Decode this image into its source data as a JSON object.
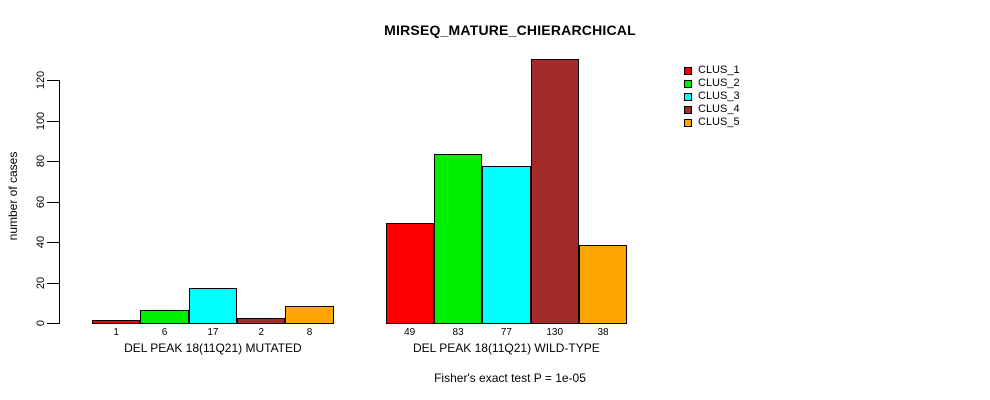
{
  "chart_data": {
    "type": "bar",
    "title": "MIRSEQ_MATURE_CHIERARCHICAL",
    "ylabel": "number of cases",
    "xlabel": "",
    "annotation": "Fisher's exact test P = 1e-05",
    "grid": false,
    "legend_position": "top-right",
    "y_ticks": [
      0,
      20,
      40,
      60,
      80,
      100,
      120
    ],
    "ylim": [
      0,
      130
    ],
    "groups": [
      {
        "label": "DEL PEAK 18(11Q21) MUTATED",
        "values": [
          1,
          6,
          17,
          2,
          8
        ]
      },
      {
        "label": "DEL PEAK 18(11Q21) WILD-TYPE",
        "values": [
          49,
          83,
          77,
          130,
          38
        ]
      }
    ],
    "series": [
      {
        "name": "CLUS_1",
        "color": "#FF0000",
        "values": [
          1,
          49
        ]
      },
      {
        "name": "CLUS_2",
        "color": "#00EE00",
        "values": [
          6,
          83
        ]
      },
      {
        "name": "CLUS_3",
        "color": "#00FFFF",
        "values": [
          17,
          77
        ]
      },
      {
        "name": "CLUS_4",
        "color": "#A52A2A",
        "values": [
          2,
          130
        ]
      },
      {
        "name": "CLUS_5",
        "color": "#FFA500",
        "values": [
          8,
          38
        ]
      }
    ],
    "bar_border_color": "#000000",
    "background_color": "#FFFFFF"
  }
}
